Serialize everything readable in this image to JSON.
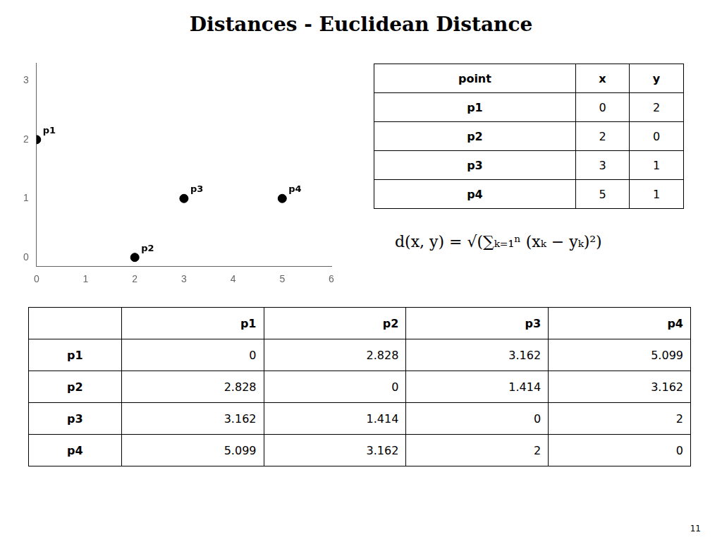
{
  "chart_data": {
    "type": "scatter",
    "title": "Distances - Euclidean Distance",
    "x": [
      0,
      2,
      3,
      5
    ],
    "values": [
      2,
      0,
      1,
      1
    ],
    "point_labels": [
      "p1",
      "p2",
      "p3",
      "p4"
    ],
    "color": "#000000",
    "xlim": [
      0,
      6
    ],
    "xticks": [
      0,
      1,
      2,
      3,
      4,
      5,
      6
    ],
    "ylim": [
      -0.15,
      3.3
    ],
    "yticks": [
      0,
      1,
      2,
      3
    ],
    "grid": false,
    "tables": [
      {
        "headers": [
          "point",
          "x",
          "y"
        ],
        "rows": [
          [
            "p1",
            "0",
            "2"
          ],
          [
            "p2",
            "2",
            "0"
          ],
          [
            "p3",
            "3",
            "1"
          ],
          [
            "p4",
            "5",
            "1"
          ]
        ]
      },
      {
        "headers": [
          "",
          "p1",
          "p2",
          "p3",
          "p4"
        ],
        "rows": [
          [
            "p1",
            "0",
            "2.828",
            "3.162",
            "5.099"
          ],
          [
            "p2",
            "2.828",
            "0",
            "1.414",
            "3.162"
          ],
          [
            "p3",
            "3.162",
            "1.414",
            "0",
            "2"
          ],
          [
            "p4",
            "5.099",
            "3.162",
            "2",
            "0"
          ]
        ]
      }
    ],
    "annotations": [
      "d(x, y) = √(∑ₖ₌₁ⁿ (xₖ − yₖ)²)",
      "11"
    ]
  }
}
